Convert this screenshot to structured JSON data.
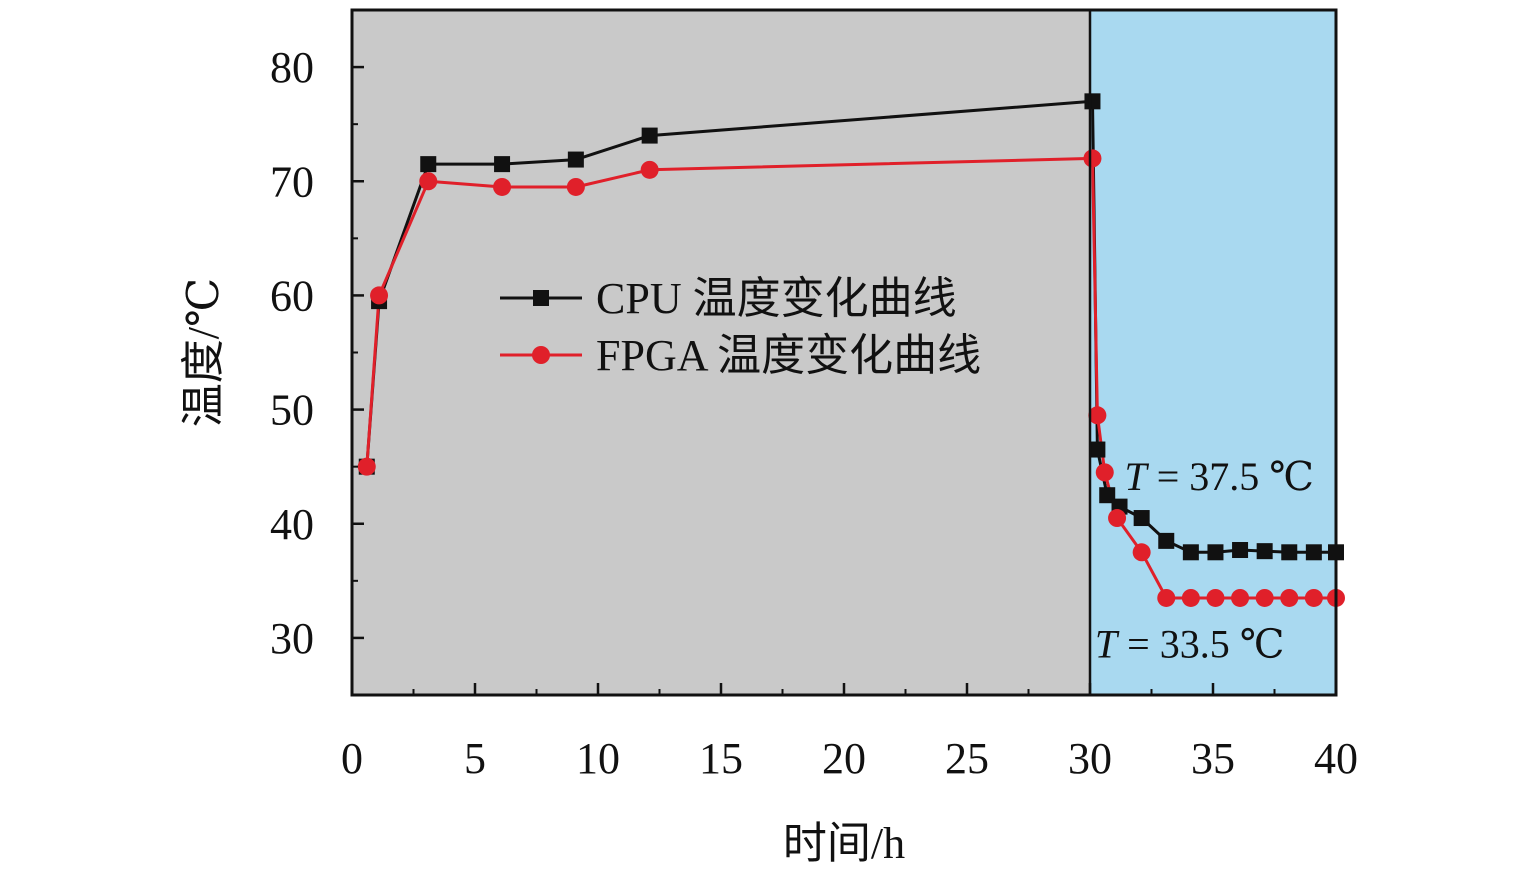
{
  "chart_data": {
    "type": "line",
    "xlabel": "时间/h",
    "ylabel": "温度/℃",
    "xlim": [
      0,
      40
    ],
    "ylim": [
      25,
      85
    ],
    "x_ticks": [
      0,
      5,
      10,
      15,
      20,
      25,
      30,
      35,
      40
    ],
    "y_ticks": [
      30,
      40,
      50,
      60,
      70,
      80
    ],
    "grid": false,
    "legend_position": "center-left",
    "regions": [
      {
        "x_range": [
          0,
          30
        ],
        "color": "#c9c9c9"
      },
      {
        "x_range": [
          30,
          40
        ],
        "color": "#a9d9f0"
      }
    ],
    "series": [
      {
        "name": "CPU 温度变化曲线",
        "color": "#111111",
        "marker": "square",
        "points": [
          [
            0.6,
            45
          ],
          [
            1.1,
            59.5
          ],
          [
            3.1,
            71.5
          ],
          [
            6.1,
            71.5
          ],
          [
            9.1,
            71.9
          ],
          [
            12.1,
            74
          ],
          [
            30.1,
            77
          ],
          [
            30.3,
            46.5
          ],
          [
            30.7,
            42.5
          ],
          [
            31.2,
            41.5
          ],
          [
            32.1,
            40.5
          ],
          [
            33.1,
            38.5
          ],
          [
            34.1,
            37.5
          ],
          [
            35.1,
            37.5
          ],
          [
            36.1,
            37.7
          ],
          [
            37.1,
            37.6
          ],
          [
            38.1,
            37.5
          ],
          [
            39.1,
            37.5
          ],
          [
            40,
            37.5
          ]
        ]
      },
      {
        "name": "FPGA 温度变化曲线",
        "color": "#e0202a",
        "marker": "circle",
        "points": [
          [
            0.6,
            45
          ],
          [
            1.1,
            60
          ],
          [
            3.1,
            70
          ],
          [
            6.1,
            69.5
          ],
          [
            9.1,
            69.5
          ],
          [
            12.1,
            71
          ],
          [
            30.1,
            72
          ],
          [
            30.3,
            49.5
          ],
          [
            30.6,
            44.5
          ],
          [
            31.1,
            40.5
          ],
          [
            32.1,
            37.5
          ],
          [
            33.1,
            33.5
          ],
          [
            34.1,
            33.5
          ],
          [
            35.1,
            33.5
          ],
          [
            36.1,
            33.5
          ],
          [
            37.1,
            33.5
          ],
          [
            38.1,
            33.5
          ],
          [
            39.1,
            33.5
          ],
          [
            40,
            33.5
          ]
        ]
      }
    ],
    "annotations": [
      {
        "italic": "T",
        "text": " = 37.5 ℃",
        "x": 31.4,
        "y": 44.2
      },
      {
        "italic": "T",
        "text": " = 33.5 ℃",
        "x": 30.2,
        "y": 29.5
      }
    ]
  }
}
